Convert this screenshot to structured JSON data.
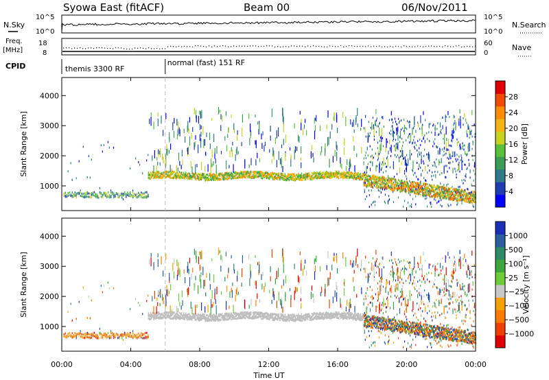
{
  "header": {
    "station": "Syowa East (fitACF)",
    "beam": "Beam 00",
    "date": "06/Nov/2011"
  },
  "aux_panels": {
    "nsky": {
      "label": "N.Sky",
      "ticks": [
        "10^5",
        "10^0"
      ]
    },
    "nsearch": {
      "label": "N.Search",
      "ticks": [
        "10^5",
        "10^0"
      ]
    },
    "freq": {
      "label_line1": "Freq.",
      "label_line2": "[MHz]",
      "ticks": [
        "18",
        "8"
      ]
    },
    "nave": {
      "label": "Nave",
      "ticks": [
        "60",
        "0"
      ]
    },
    "cpid": {
      "label": "CPID",
      "programs": [
        "themis 3300 RF",
        "normal (fast) 151 RF"
      ],
      "switch_hour": 6.0
    }
  },
  "colors": {
    "power_scale": [
      "#0000ff",
      "#1e3cb4",
      "#2f7a8a",
      "#3d9b58",
      "#5abf3b",
      "#c8d21e",
      "#f0b414",
      "#ff8c00",
      "#f04b00",
      "#e00000"
    ],
    "velocity_scale": [
      "#1c2fb8",
      "#2b5fa0",
      "#2f8a6a",
      "#3fa63c",
      "#6ccc3a",
      "#c8c8c8",
      "#f5a000",
      "#ff7a00",
      "#f04000",
      "#e00000"
    ],
    "ground_scatter": "#bebebe"
  },
  "chart_data": [
    {
      "type": "heatmap",
      "title": "",
      "xlabel": "Time UT",
      "ylabel": "Slant Range [km]",
      "xlim": [
        0,
        24
      ],
      "ylim": [
        180,
        4600
      ],
      "x_ticks": [
        "00:00",
        "04:00",
        "08:00",
        "12:00",
        "16:00",
        "20:00",
        "00:00"
      ],
      "y_ticks": [
        1000,
        2000,
        3000,
        4000
      ],
      "colorbar": {
        "label": "Power [dB]",
        "range": [
          0,
          30
        ],
        "ticks": [
          "28",
          "24",
          "20",
          "16",
          "12",
          "8",
          "4"
        ]
      },
      "features": [
        {
          "name": "morning-echoes",
          "t": [
            0.0,
            5.0
          ],
          "range_km": [
            600,
            800
          ],
          "power_db": 10
        },
        {
          "name": "main-band",
          "t": [
            5.0,
            17.5
          ],
          "range_km": [
            1200,
            1450
          ],
          "power_db": 14
        },
        {
          "name": "descending-band",
          "t": [
            17.5,
            24.0
          ],
          "range_km": [
            500,
            1200
          ],
          "power_db": 16
        }
      ]
    },
    {
      "type": "heatmap",
      "title": "",
      "xlabel": "Time UT",
      "ylabel": "Slant Range [km]",
      "xlim": [
        0,
        24
      ],
      "ylim": [
        180,
        4600
      ],
      "x_ticks": [
        "00:00",
        "04:00",
        "08:00",
        "12:00",
        "16:00",
        "20:00",
        "00:00"
      ],
      "y_ticks": [
        1000,
        2000,
        3000,
        4000
      ],
      "colorbar": {
        "label": "Velocity [m s⁻¹]",
        "ticks": [
          "1000",
          "500",
          "100",
          "25",
          "−25",
          "−100",
          "−500",
          "−1000"
        ]
      },
      "features": [
        {
          "name": "morning-echoes",
          "t": [
            0.0,
            4.0
          ],
          "range_km": [
            650,
            800
          ],
          "velocity_ms": -300
        },
        {
          "name": "ground-scatter-band",
          "t": [
            5.0,
            17.5
          ],
          "range_km": [
            1200,
            1450
          ],
          "velocity_ms": 0
        },
        {
          "name": "evening-flow",
          "t": [
            17.5,
            24.0
          ],
          "range_km": [
            500,
            1200
          ],
          "velocity_ms": -300
        }
      ]
    }
  ]
}
